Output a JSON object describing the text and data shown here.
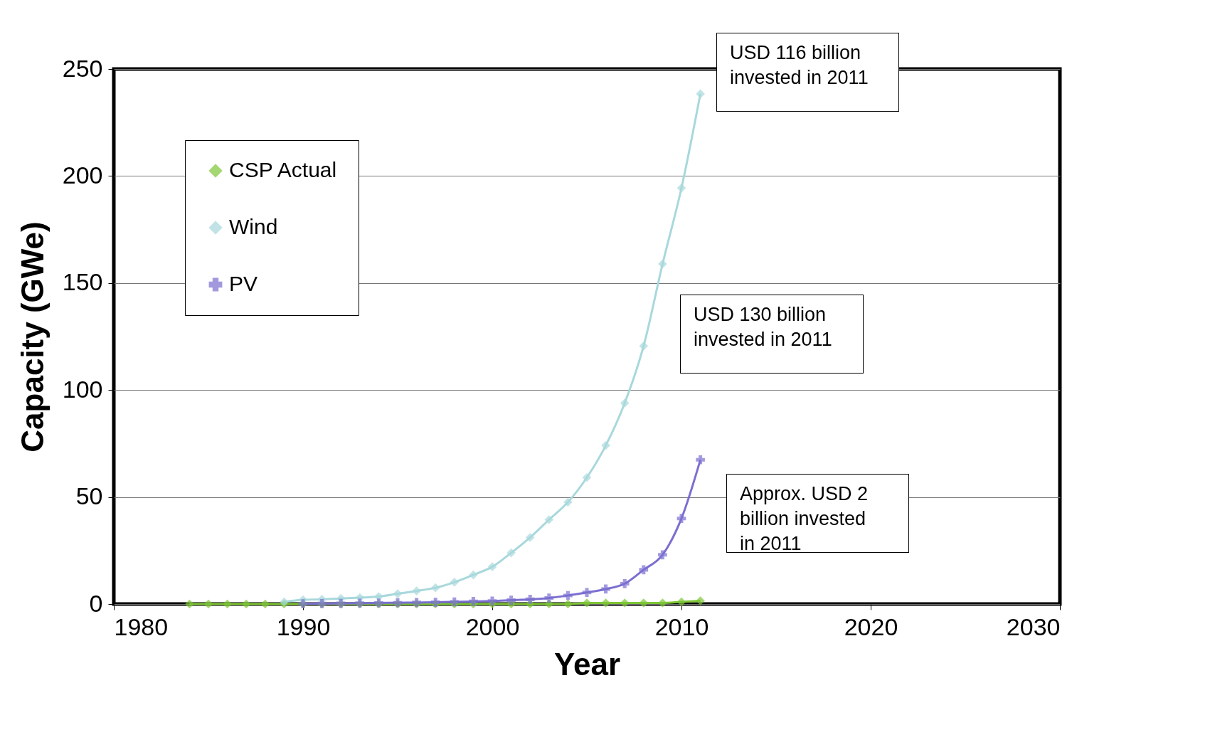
{
  "chart_data": {
    "type": "line",
    "xlabel": "Year",
    "ylabel": "Capacity (GWe)",
    "xlim": [
      1980,
      2030
    ],
    "xticks": [
      1980,
      1990,
      2000,
      2010,
      2020,
      2030
    ],
    "ylim": [
      0,
      250
    ],
    "yticks": [
      0,
      50,
      100,
      150,
      200,
      250
    ],
    "grid": "y",
    "legend": "top left",
    "line_style": "solid",
    "series": [
      {
        "name": "CSP Actual",
        "color": "#7ec636",
        "marker": "diamond",
        "x": [
          1984,
          1985,
          1986,
          1987,
          1988,
          1989,
          1990,
          1991,
          1992,
          1993,
          1994,
          1995,
          1996,
          1997,
          1998,
          1999,
          2000,
          2001,
          2002,
          2003,
          2004,
          2005,
          2006,
          2007,
          2008,
          2009,
          2010,
          2011
        ],
        "values": [
          0,
          0,
          0,
          0,
          0,
          0,
          0,
          0,
          0,
          0,
          0,
          0,
          0,
          0,
          0,
          0,
          0,
          0,
          0,
          0,
          0,
          0.5,
          0.5,
          0.5,
          0.5,
          0.5,
          1,
          1.5
        ]
      },
      {
        "name": "Wind",
        "color": "#a8d8dc",
        "marker": "diamond",
        "x": [
          1989,
          1990,
          1991,
          1992,
          1993,
          1994,
          1995,
          1996,
          1997,
          1998,
          1999,
          2000,
          2001,
          2002,
          2003,
          2004,
          2005,
          2006,
          2007,
          2008,
          2009,
          2010,
          2011
        ],
        "values": [
          1,
          2,
          2.2,
          2.6,
          3,
          3.5,
          4.8,
          6.1,
          7.6,
          10.2,
          13.6,
          17.4,
          23.9,
          31.1,
          39.4,
          47.6,
          59.1,
          74.1,
          93.9,
          120.6,
          158.9,
          194.4,
          238.4
        ]
      },
      {
        "name": "PV",
        "color": "#7b6fd0",
        "marker": "cross",
        "x": [
          1990,
          1991,
          1992,
          1993,
          1994,
          1995,
          1996,
          1997,
          1998,
          1999,
          2000,
          2001,
          2002,
          2003,
          2004,
          2005,
          2006,
          2007,
          2008,
          2009,
          2010,
          2011
        ],
        "values": [
          0.1,
          0.2,
          0.3,
          0.4,
          0.5,
          0.6,
          0.7,
          0.8,
          1,
          1.2,
          1.4,
          1.8,
          2.2,
          2.8,
          4,
          5.4,
          7,
          9.5,
          16,
          23,
          40,
          67.4
        ]
      }
    ],
    "annotations": [
      "USD 116 billion\ninvested in 2011",
      "USD 130 billion\ninvested in 2011",
      "Approx. USD 2\nbillion invested\nin 2011"
    ]
  }
}
